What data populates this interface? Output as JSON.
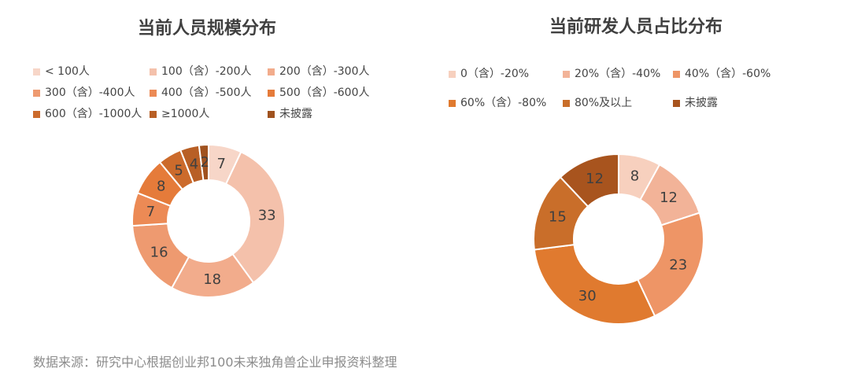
{
  "footer": {
    "source": "数据来源：研究中心根据创业邦100未来独角兽企业申报资料整理"
  },
  "chart_data": [
    {
      "type": "pie",
      "title": "当前人员规模分布",
      "categories": [
        "< 100人",
        "100（含）-200人",
        "200（含）-300人",
        "300（含）-400人",
        "400（含）-500人",
        "500（含）-600人",
        "600（含）-1000人",
        "≥1000人",
        "未披露"
      ],
      "values": [
        7,
        33,
        18,
        16,
        7,
        8,
        5,
        4,
        2
      ],
      "slice_label_values": [
        7,
        33,
        18,
        16,
        7,
        8,
        5,
        4,
        2
      ],
      "colors": [
        "#f7d6c8",
        "#f4c1ab",
        "#f2ac8c",
        "#ee9a70",
        "#ec8a55",
        "#e57b3a",
        "#cc6b2c",
        "#b85f25",
        "#a0521f"
      ],
      "legend_position": "top"
    },
    {
      "type": "pie",
      "title": "当前研发人员占比分布",
      "categories": [
        "0（含）-20%",
        "20%（含）-40%",
        "40%（含）-60%",
        "60%（含）-80%",
        "80%及以上",
        "未披露"
      ],
      "values": [
        8,
        12,
        23,
        30,
        15,
        12
      ],
      "colors": [
        "#f7d0be",
        "#f2b398",
        "#ee9566",
        "#e07a2f",
        "#c96e2a",
        "#a8541e"
      ],
      "legend_position": "top"
    }
  ]
}
